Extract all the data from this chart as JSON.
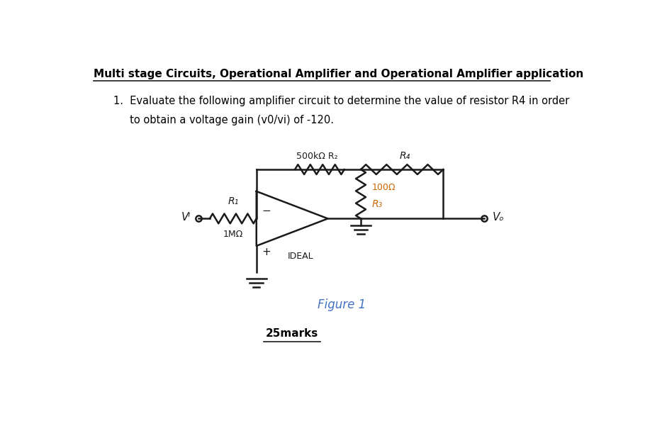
{
  "title": "Multi stage Circuits, Operational Amplifier and Operational Amplifier application",
  "q_line1": "1.  Evaluate the following amplifier circuit to determine the value of resistor R4 in order",
  "q_line2": "     to obtain a voltage gain (v0/vi) of -120.",
  "figure_label": "Figure 1",
  "marks_label": "25marks",
  "background_color": "#ffffff",
  "text_color": "#000000",
  "circuit_color": "#1a1a1a",
  "r3_label_color": "#cc6600",
  "figure_label_color": "#4472c4"
}
